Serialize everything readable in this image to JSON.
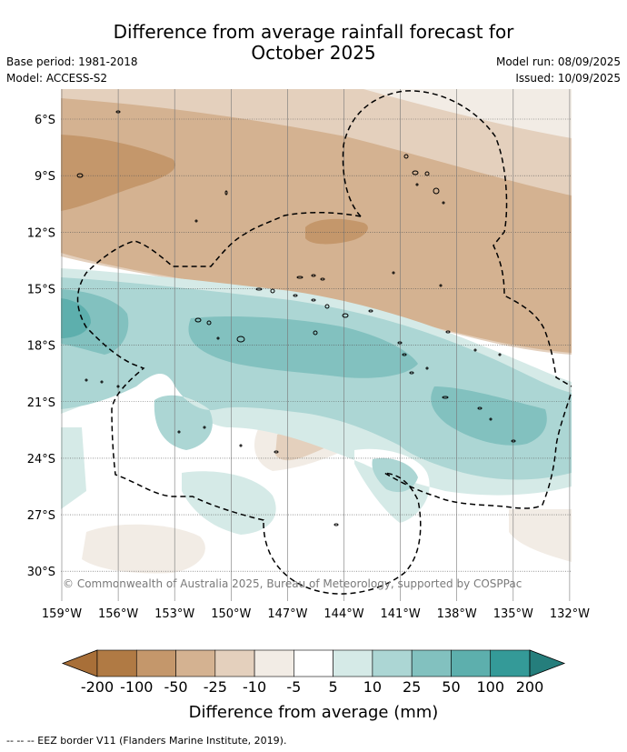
{
  "header": {
    "title_line1": "Difference from average rainfall forecast for",
    "title_line2": "October 2025",
    "base_period": "Base period: 1981-2018",
    "model": "Model: ACCESS-S2",
    "model_run": "Model run: 08/09/2025",
    "issued": "Issued: 10/09/2025"
  },
  "map": {
    "lat_labels": [
      "6°S",
      "9°S",
      "12°S",
      "15°S",
      "18°S",
      "21°S",
      "24°S",
      "27°S",
      "30°S"
    ],
    "lon_labels": [
      "159°W",
      "156°W",
      "153°W",
      "150°W",
      "147°W",
      "144°W",
      "141°W",
      "138°W",
      "135°W",
      "132°W"
    ],
    "copyright": "© Commonwealth of Australia 2025, Bureau of Meteorology, supported by COSPPac",
    "colors": {
      "brown_200": "#b07a44",
      "brown_100": "#c4976b",
      "brown_50": "#d4b291",
      "brown_25": "#e4d0bd",
      "brown_10": "#f2ece5",
      "neutral": "#ffffff",
      "teal_10": "#d5eae7",
      "teal_25": "#acd6d4",
      "teal_50": "#82c1bf",
      "teal_100": "#5dafad",
      "teal_200": "#349a98"
    }
  },
  "legend": {
    "ticks": [
      "-200",
      "-100",
      "-50",
      "-25",
      "-10",
      "-5",
      "5",
      "10",
      "25",
      "50",
      "100",
      "200"
    ],
    "colors": [
      "#a86f38",
      "#b07a44",
      "#c4976b",
      "#d4b291",
      "#e4d0bd",
      "#f2ece5",
      "#ffffff",
      "#d5eae7",
      "#acd6d4",
      "#82c1bf",
      "#5dafad",
      "#349a98",
      "#257e7c"
    ],
    "label": "Difference from average (mm)"
  },
  "footnote": "--  --  -- EEZ border V11 (Flanders Marine Institute, 2019)."
}
